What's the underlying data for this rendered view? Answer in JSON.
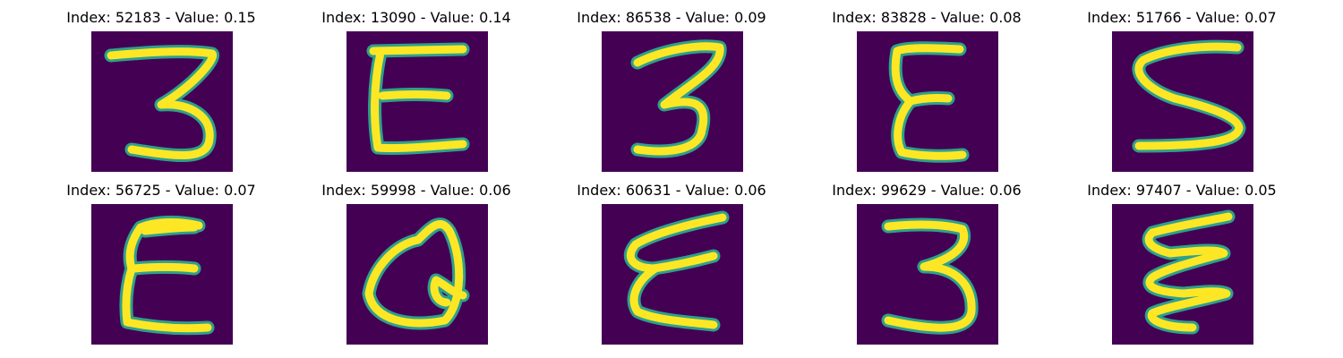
{
  "panels": [
    {
      "title": "Index: 52183 - Value: 0.15",
      "glyph": "digit-3-icon"
    },
    {
      "title": "Index: 13090 - Value: 0.14",
      "glyph": "letter-e-icon"
    },
    {
      "title": "Index: 86538 - Value: 0.09",
      "glyph": "digit-3-icon"
    },
    {
      "title": "Index: 83828 - Value: 0.08",
      "glyph": "letter-e-icon"
    },
    {
      "title": "Index: 51766 - Value: 0.07",
      "glyph": "digit-5-icon"
    },
    {
      "title": "Index: 56725 - Value: 0.07",
      "glyph": "letter-e-icon"
    },
    {
      "title": "Index: 59998 - Value: 0.06",
      "glyph": "letter-q-icon"
    },
    {
      "title": "Index: 60631 - Value: 0.06",
      "glyph": "letter-e-icon"
    },
    {
      "title": "Index: 99629 - Value: 0.06",
      "glyph": "digit-3-icon"
    },
    {
      "title": "Index: 97407 - Value: 0.05",
      "glyph": "letter-e-icon"
    }
  ],
  "colors": {
    "background": "#440154",
    "stroke": "#fde725",
    "edge": "#2fa08c"
  }
}
